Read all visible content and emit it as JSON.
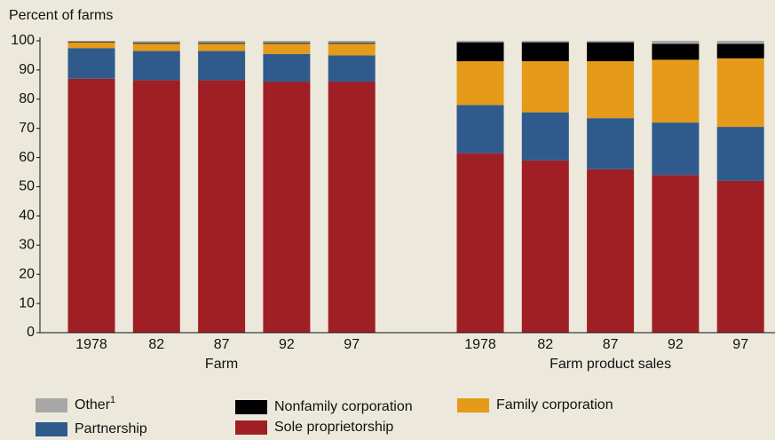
{
  "chart_data": {
    "type": "stacked-bar",
    "y_label": "Percent of farms",
    "ylim": [
      0,
      100
    ],
    "yticks": [
      0,
      10,
      20,
      30,
      40,
      50,
      60,
      70,
      80,
      90,
      100
    ],
    "groups": [
      {
        "name": "Farm",
        "categories": [
          "1978",
          "82",
          "87",
          "92",
          "97"
        ]
      },
      {
        "name": "Farm product sales",
        "categories": [
          "1978",
          "82",
          "87",
          "92",
          "97"
        ]
      }
    ],
    "series": [
      {
        "name": "Sole proprietorship",
        "color": "#a01f25",
        "values": [
          [
            87,
            86.5,
            86.5,
            86,
            86
          ],
          [
            61.5,
            59,
            56,
            54,
            52
          ]
        ]
      },
      {
        "name": "Partnership",
        "color": "#2f5b8c",
        "values": [
          [
            10.5,
            10,
            10,
            9.5,
            9
          ],
          [
            16.5,
            16.5,
            17.5,
            18,
            18.5
          ]
        ]
      },
      {
        "name": "Family corporation",
        "color": "#e69a1a",
        "values": [
          [
            2,
            2.5,
            2.5,
            3.5,
            4
          ],
          [
            15,
            17.5,
            19.5,
            21.5,
            23.5
          ]
        ]
      },
      {
        "name": "Nonfamily corporation",
        "color": "#000000",
        "values": [
          [
            0.2,
            0.3,
            0.3,
            0.3,
            0.3
          ],
          [
            6.5,
            6.5,
            6.5,
            5.5,
            5
          ]
        ]
      },
      {
        "name": "Other",
        "footnote": "1",
        "color": "#a7a7a7",
        "values": [
          [
            0.3,
            0.6,
            0.7,
            0.7,
            0.7
          ],
          [
            0.5,
            0.5,
            0.5,
            1,
            1
          ]
        ]
      }
    ]
  }
}
